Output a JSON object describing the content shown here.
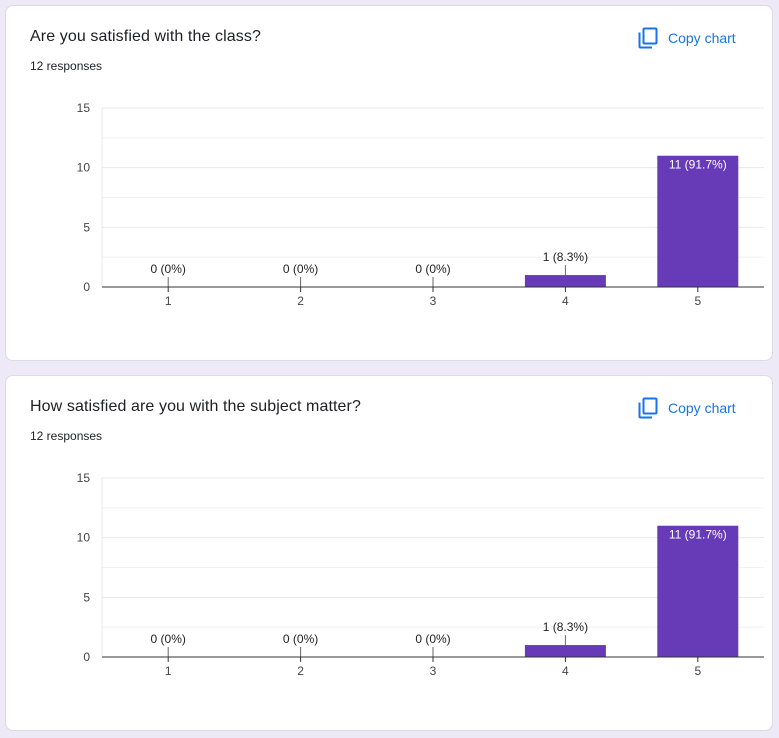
{
  "colors": {
    "bar": "#673ab7",
    "accent": "#1a73e8",
    "grid": "#e8e8e8",
    "axis": "#333333",
    "page_bg": "#ede9f7"
  },
  "charts": [
    {
      "title": "Are you satisfied with the class?",
      "responses": "12 responses",
      "copy_label": "Copy chart",
      "copy_icon": "copy-icon"
    },
    {
      "title": "How satisfied are you with the subject matter?",
      "responses": "12 responses",
      "copy_label": "Copy chart",
      "copy_icon": "copy-icon"
    }
  ],
  "chart_data": [
    {
      "type": "bar",
      "title": "Are you satisfied with the class?",
      "categories": [
        "1",
        "2",
        "3",
        "4",
        "5"
      ],
      "values": [
        0,
        0,
        0,
        1,
        11
      ],
      "data_labels": [
        "0 (0%)",
        "0 (0%)",
        "0 (0%)",
        "1 (8.3%)",
        "11 (91.7%)"
      ],
      "yticks": [
        "0",
        "5",
        "10",
        "15"
      ],
      "ylim": [
        0,
        15
      ],
      "grid": true
    },
    {
      "type": "bar",
      "title": "How satisfied are you with the subject matter?",
      "categories": [
        "1",
        "2",
        "3",
        "4",
        "5"
      ],
      "values": [
        0,
        0,
        0,
        1,
        11
      ],
      "data_labels": [
        "0 (0%)",
        "0 (0%)",
        "0 (0%)",
        "1 (8.3%)",
        "11 (91.7%)"
      ],
      "yticks": [
        "0",
        "5",
        "10",
        "15"
      ],
      "ylim": [
        0,
        15
      ],
      "grid": true
    }
  ]
}
